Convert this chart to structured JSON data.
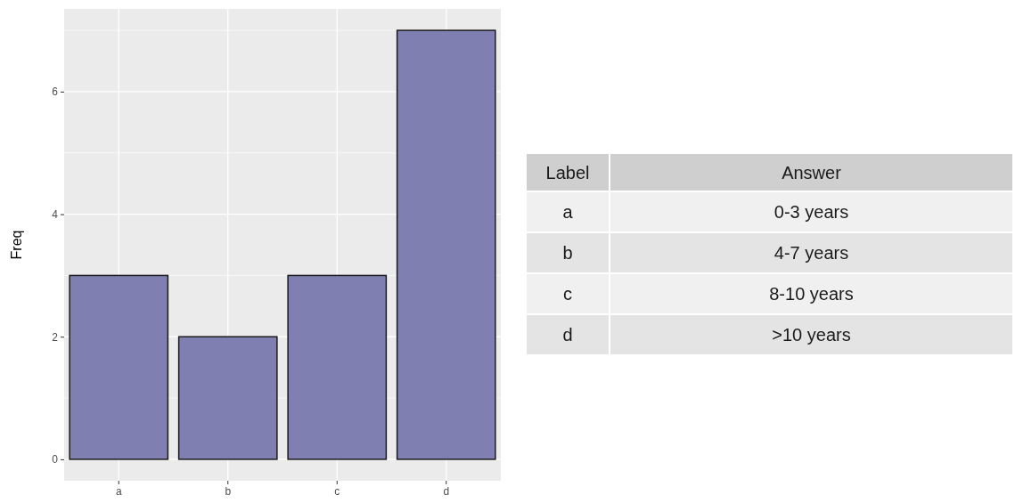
{
  "chart_data": [
    {
      "type": "bar",
      "categories": [
        "a",
        "b",
        "c",
        "d"
      ],
      "values": [
        3,
        2,
        3,
        7
      ],
      "color": "#7f7fb2",
      "ylabel": "Freq",
      "ylim": [
        -0.35,
        7.35
      ],
      "yticks": [
        0,
        2,
        4,
        6
      ],
      "grid": true
    },
    {
      "type": "other",
      "annotations": [
        "Label",
        "Answer",
        "a",
        "0-3 years",
        "b",
        "4-7 years",
        "c",
        "8-10 years",
        "d",
        ">10 years"
      ]
    }
  ]
}
